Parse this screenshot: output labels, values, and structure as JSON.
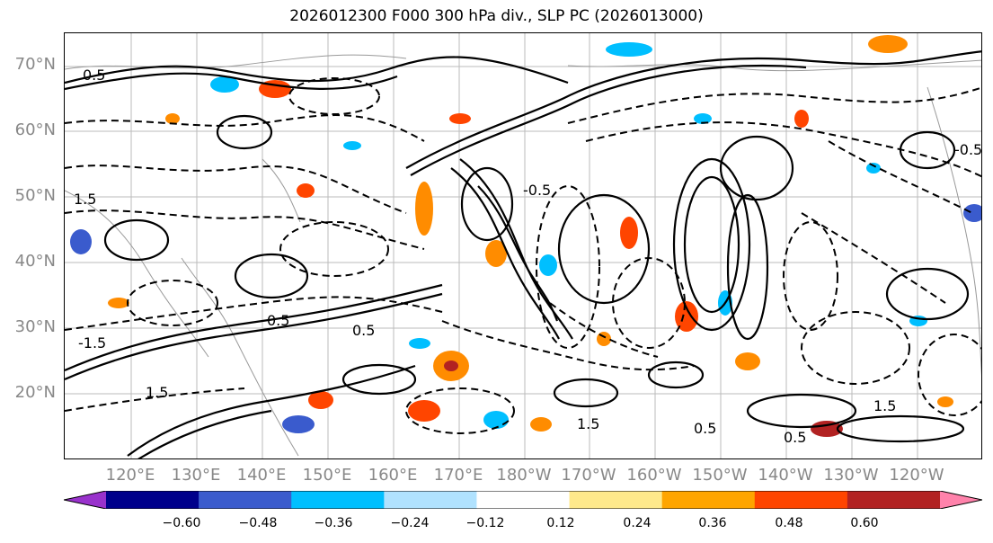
{
  "title": "2026012300 F000 300 hPa div., SLP PC (2026013000)",
  "lat_labels": [
    "70°N",
    "60°N",
    "50°N",
    "40°N",
    "30°N",
    "20°N"
  ],
  "lon_labels": [
    "120°E",
    "130°E",
    "140°E",
    "150°E",
    "160°E",
    "170°E",
    "180°W",
    "170°W",
    "160°W",
    "150°W",
    "140°W",
    "130°W",
    "120°W"
  ],
  "colorbar": {
    "ticks": [
      "−0.60",
      "−0.48",
      "−0.36",
      "−0.24",
      "−0.12",
      "0.12",
      "0.24",
      "0.36",
      "0.48",
      "0.60"
    ],
    "colors": [
      "#9932cc",
      "#00008b",
      "#3a5bcd",
      "#00bfff",
      "#b0e2ff",
      "#ffffff",
      "#ffe98b",
      "#ffa500",
      "#ff4500",
      "#b22222",
      "#ff82ab"
    ]
  },
  "contour_labels": [
    "0.5",
    "1.5",
    "-1.5",
    "0.5",
    "1.5",
    "0.5",
    "-0.5",
    "1.5",
    "0.5",
    "0.5",
    "1.5",
    "-0.5"
  ],
  "colors": {
    "lat_lon_labels": "#888888",
    "grid": "#bbbbbb",
    "contour": "#000000"
  }
}
